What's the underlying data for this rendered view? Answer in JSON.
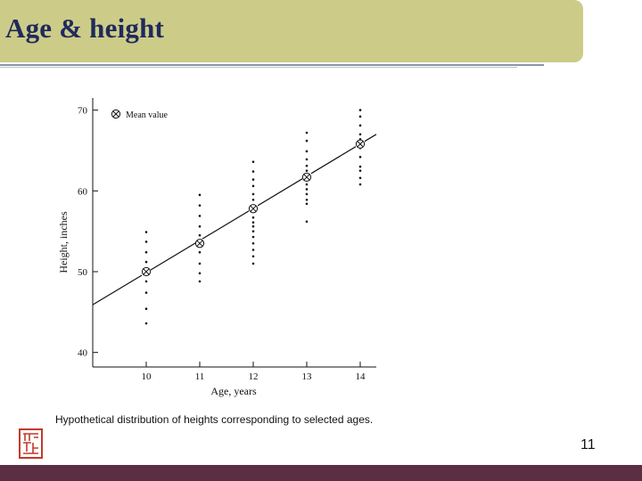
{
  "slide": {
    "title": "Age & height",
    "caption": "Hypothetical distribution of heights corresponding to selected ages.",
    "page_number": "11"
  },
  "colors": {
    "title_bar": "#cccc88",
    "title_text": "#1f2a5c",
    "bottom_bar": "#5a2f44",
    "seal": "#c23a2a"
  },
  "chart_data": {
    "type": "scatter",
    "xlabel": "Age, years",
    "ylabel": "Height, inches",
    "x_ticks": [
      10,
      11,
      12,
      13,
      14
    ],
    "y_ticks": [
      40,
      50,
      60,
      70
    ],
    "legend": {
      "label": "Mean value",
      "position": "top-left"
    },
    "grid": false,
    "series": [
      {
        "name": "Mean value",
        "points": [
          [
            10,
            50
          ],
          [
            11,
            53.5
          ],
          [
            12,
            57.8
          ],
          [
            13,
            61.7
          ],
          [
            14,
            65.8
          ]
        ]
      }
    ],
    "individual_points": [
      [
        10,
        54.9
      ],
      [
        10,
        53.7
      ],
      [
        10,
        52.4
      ],
      [
        10,
        51.2
      ],
      [
        10,
        50.3
      ],
      [
        10,
        48.8
      ],
      [
        10,
        47.4
      ],
      [
        10,
        45.4
      ],
      [
        10,
        43.6
      ],
      [
        11,
        59.5
      ],
      [
        11,
        58.2
      ],
      [
        11,
        56.9
      ],
      [
        11,
        55.6
      ],
      [
        11,
        54.5
      ],
      [
        11,
        52.4
      ],
      [
        11,
        51.0
      ],
      [
        11,
        49.8
      ],
      [
        11,
        48.8
      ],
      [
        12,
        63.6
      ],
      [
        12,
        62.4
      ],
      [
        12,
        61.4
      ],
      [
        12,
        60.6
      ],
      [
        12,
        59.6
      ],
      [
        12,
        58.9
      ],
      [
        12,
        58.2
      ],
      [
        12,
        57.4
      ],
      [
        12,
        56.7
      ],
      [
        12,
        56.1
      ],
      [
        12,
        55.6
      ],
      [
        12,
        55.0
      ],
      [
        12,
        54.3
      ],
      [
        12,
        53.5
      ],
      [
        12,
        52.7
      ],
      [
        12,
        51.9
      ],
      [
        12,
        51.0
      ],
      [
        13,
        67.2
      ],
      [
        13,
        66.2
      ],
      [
        13,
        64.9
      ],
      [
        13,
        63.9
      ],
      [
        13,
        63.1
      ],
      [
        13,
        62.5
      ],
      [
        13,
        61.7
      ],
      [
        13,
        60.8
      ],
      [
        13,
        60.2
      ],
      [
        13,
        59.6
      ],
      [
        13,
        58.9
      ],
      [
        13,
        58.4
      ],
      [
        13,
        56.2
      ],
      [
        14,
        70.0
      ],
      [
        14,
        69.2
      ],
      [
        14,
        68.1
      ],
      [
        14,
        67.0
      ],
      [
        14,
        66.4
      ],
      [
        14,
        65.3
      ],
      [
        14,
        64.2
      ],
      [
        14,
        63.0
      ],
      [
        14,
        62.5
      ],
      [
        14,
        61.6
      ],
      [
        14,
        60.8
      ]
    ],
    "regression_line": {
      "x": [
        9,
        14.3
      ],
      "y": [
        45.9,
        67.0
      ]
    },
    "xlim": [
      9,
      14.3
    ],
    "ylim": [
      38.2,
      71.5
    ]
  }
}
